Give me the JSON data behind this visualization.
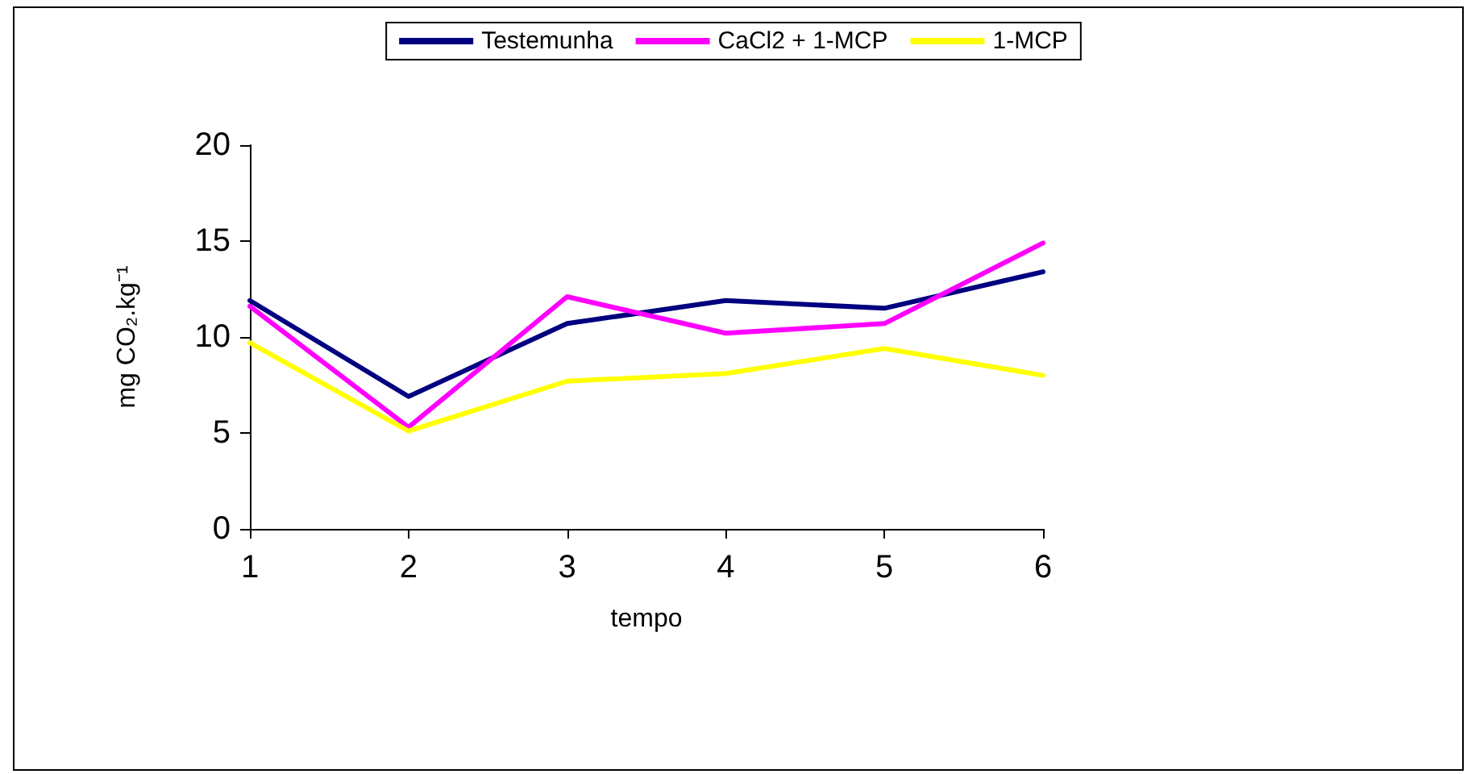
{
  "chart_data": {
    "type": "line",
    "xlabel": "tempo",
    "ylabel": "mg CO₂.kg⁻¹",
    "categories": [
      "1",
      "2",
      "3",
      "4",
      "5",
      "6"
    ],
    "series": [
      {
        "name": "Testemunha",
        "color": "#000080",
        "values": [
          11.9,
          6.9,
          10.7,
          11.9,
          11.5,
          13.4
        ]
      },
      {
        "name": "CaCl2 + 1-MCP",
        "color": "#ff00ff",
        "values": [
          11.6,
          5.3,
          12.1,
          10.2,
          10.7,
          14.9
        ]
      },
      {
        "name": "1-MCP",
        "color": "#ffff00",
        "values": [
          9.7,
          5.1,
          7.7,
          8.1,
          9.4,
          8.0
        ]
      }
    ],
    "ylim": [
      0,
      20
    ],
    "yticks": [
      0,
      5,
      10,
      15,
      20
    ],
    "grid": false,
    "legend": "top",
    "marker": "none",
    "line_style": "solid"
  }
}
